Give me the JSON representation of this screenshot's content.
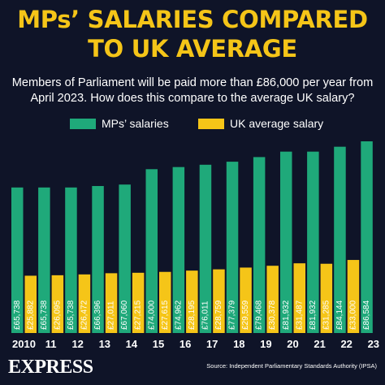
{
  "headline": [
    "MPs’ SALARIES COMPARED",
    "TO UK AVERAGE"
  ],
  "subtitle": [
    "Members of Parliament will be paid more than £86,000 per year from",
    "April 2023. How does this compare to the average UK salary?"
  ],
  "legend": [
    "MPs’ salaries",
    "UK average salary"
  ],
  "colors": {
    "mps": "#1fa97a",
    "uk": "#f5c518",
    "background": "#0f1428"
  },
  "source": "Source: Independent Parliamentary Standards Authority (IPSA)",
  "logo": "EXPRESS",
  "chart_data": {
    "type": "bar",
    "categories": [
      "2010",
      "11",
      "12",
      "13",
      "14",
      "15",
      "16",
      "17",
      "18",
      "19",
      "20",
      "21",
      "22",
      "23"
    ],
    "series": [
      {
        "name": "MPs’ salaries",
        "values": [
          65738,
          65738,
          65738,
          66396,
          67060,
          74000,
          74962,
          76011,
          77379,
          79468,
          81932,
          81932,
          84144,
          86584
        ],
        "labels": [
          "£65,738",
          "£65,738",
          "£65,738",
          "£66,396",
          "£67,060",
          "£74,000",
          "£74,962",
          "£76,011",
          "£77,379",
          "£79,468",
          "£81,932",
          "£81,932",
          "£84,144",
          "£86,584"
        ]
      },
      {
        "name": "UK average salary",
        "values": [
          25882,
          26095,
          26472,
          27011,
          27215,
          27615,
          28195,
          28759,
          29559,
          30378,
          31487,
          31285,
          33000,
          null
        ],
        "labels": [
          "£25,882",
          "£26,095",
          "£26,472",
          "£27,011",
          "£27,215",
          "£27,615",
          "£28,195",
          "£28,759",
          "£29,559",
          "£30,378",
          "£31,487",
          "£31,285",
          "£33,000",
          ""
        ]
      }
    ],
    "ylim": [
      0,
      90000
    ],
    "grid": false,
    "legend_position": "top-center"
  }
}
